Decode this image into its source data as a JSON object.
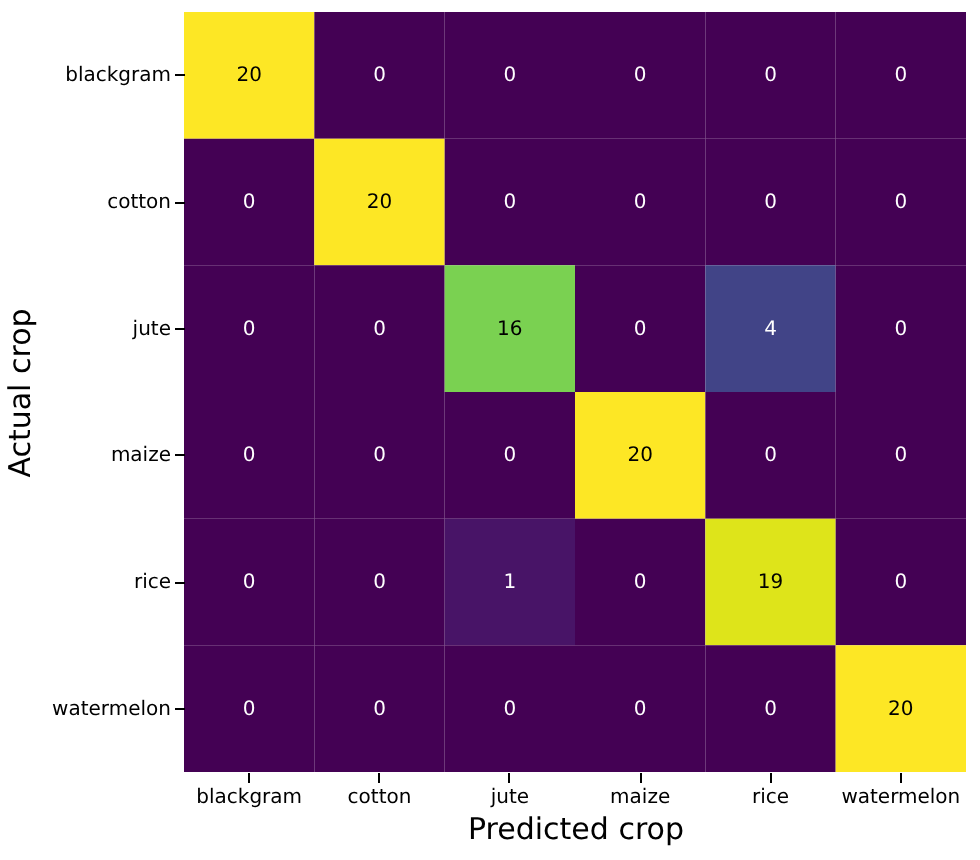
{
  "chart_data": {
    "type": "heatmap",
    "xlabel": "Predicted crop",
    "ylabel": "Actual crop",
    "categories": [
      "blackgram",
      "cotton",
      "jute",
      "maize",
      "rice",
      "watermelon"
    ],
    "y_categories": [
      "blackgram",
      "cotton",
      "jute",
      "maize",
      "rice",
      "watermelon"
    ],
    "cells": [
      [
        20,
        0,
        0,
        0,
        0,
        0
      ],
      [
        0,
        20,
        0,
        0,
        0,
        0
      ],
      [
        0,
        0,
        16,
        0,
        4,
        0
      ],
      [
        0,
        0,
        0,
        20,
        0,
        0
      ],
      [
        0,
        0,
        1,
        0,
        19,
        0
      ],
      [
        0,
        0,
        0,
        0,
        0,
        20
      ]
    ],
    "data_labels": true
  }
}
